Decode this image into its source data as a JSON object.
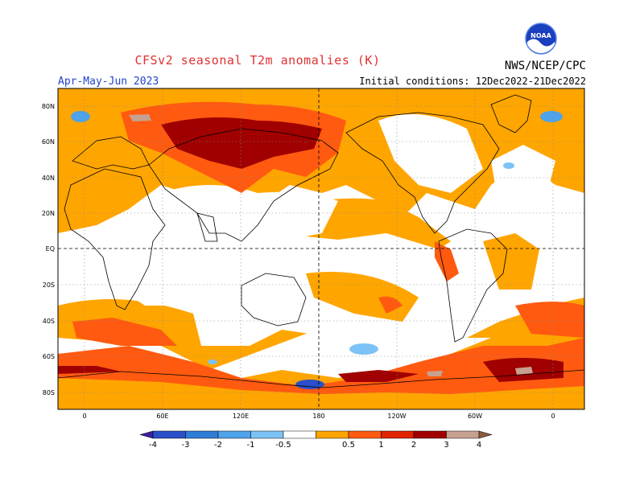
{
  "header": {
    "title": "CFSv2 seasonal T2m anomalies (K)",
    "period": "Apr-May-Jun 2023",
    "initial_conditions": "Initial conditions: 12Dec2022-21Dec2022",
    "agency": "NWS/NCEP/CPC",
    "logo_text": "NOAA",
    "logo_icon": "noaa-logo-icon"
  },
  "map": {
    "lat_labels": [
      "80N",
      "60N",
      "40N",
      "20N",
      "EQ",
      "20S",
      "40S",
      "60S",
      "80S"
    ],
    "lon_labels": [
      "0",
      "60E",
      "120E",
      "180",
      "120W",
      "60W",
      "0"
    ]
  },
  "colorbar": {
    "tick_labels": [
      "-4",
      "-3",
      "-2",
      "-1",
      "-0.5",
      "0.5",
      "1",
      "2",
      "3",
      "4"
    ],
    "colors": [
      "#3b1e9e",
      "#2a4fc8",
      "#2f7ed6",
      "#4ea3ea",
      "#7cc2f6",
      "#ffffff",
      "#ffa500",
      "#ff5a10",
      "#e02400",
      "#a00000",
      "#c8a090",
      "#8a5a40"
    ]
  }
}
